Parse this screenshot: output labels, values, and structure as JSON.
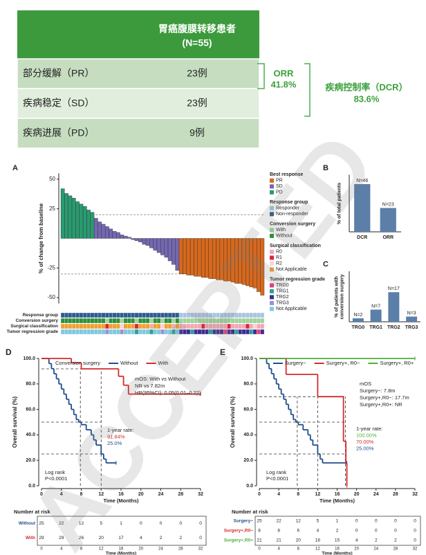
{
  "table": {
    "title": "胃癌腹膜转移患者",
    "subtitle": "(N=55)",
    "rows": [
      [
        "部分缓解（PR）",
        "23例"
      ],
      [
        "疾病稳定（SD）",
        "23例"
      ],
      [
        "疾病进展（PD）",
        "9例"
      ]
    ]
  },
  "summary": [
    {
      "label": "ORR",
      "value": "41.8%"
    },
    {
      "label": "疾病控制率（DCR）",
      "value": "83.6%"
    }
  ],
  "watermark": "ACCEPTED",
  "chart_data": [
    {
      "panel": "A",
      "type": "waterfall",
      "ylabel": "% of change from baseline",
      "ylim": [
        -55,
        55
      ],
      "yticks": [
        -50,
        -25,
        25,
        50
      ],
      "reference_lines": [
        20,
        -30
      ],
      "legend_title": "Best response",
      "series": [
        {
          "name": "PD",
          "color": "#2b9a70",
          "values": [
            42,
            38,
            36,
            34,
            31,
            29,
            27,
            24,
            22
          ]
        },
        {
          "name": "SD",
          "color": "#7468b0",
          "values": [
            17,
            14,
            12,
            10,
            8,
            6,
            5,
            3,
            2,
            1,
            -1,
            -2,
            -3,
            -5,
            -6,
            -8,
            -10,
            -12,
            -14,
            -16,
            -19,
            -22,
            -27
          ]
        },
        {
          "name": "PR",
          "color": "#d6691e",
          "values": [
            -30,
            -30,
            -31,
            -31,
            -32,
            -32,
            -33,
            -33,
            -34,
            -34,
            -35,
            -35,
            -36,
            -36,
            -37,
            -38,
            -38,
            -39,
            -40,
            -41,
            -42,
            -45,
            -48
          ]
        }
      ],
      "tracks": [
        {
          "name": "Response group",
          "levels": [
            {
              "name": "Responder",
              "color": "#a8c4df"
            },
            {
              "name": "Non-responder",
              "color": "#2d5d8c"
            }
          ],
          "values": [
            "Non-responder",
            "Non-responder",
            "Non-responder",
            "Non-responder",
            "Non-responder",
            "Non-responder",
            "Non-responder",
            "Non-responder",
            "Non-responder",
            "Non-responder",
            "Non-responder",
            "Non-responder",
            "Non-responder",
            "Non-responder",
            "Non-responder",
            "Non-responder",
            "Non-responder",
            "Non-responder",
            "Non-responder",
            "Non-responder",
            "Non-responder",
            "Non-responder",
            "Non-responder",
            "Non-responder",
            "Non-responder",
            "Non-responder",
            "Non-responder",
            "Non-responder",
            "Non-responder",
            "Non-responder",
            "Non-responder",
            "Non-responder",
            "Responder",
            "Responder",
            "Responder",
            "Responder",
            "Responder",
            "Responder",
            "Responder",
            "Responder",
            "Responder",
            "Responder",
            "Responder",
            "Responder",
            "Responder",
            "Responder",
            "Responder",
            "Responder",
            "Responder",
            "Responder",
            "Responder",
            "Responder",
            "Responder",
            "Responder",
            "Responder"
          ]
        },
        {
          "name": "Conversion surgery",
          "levels": [
            {
              "name": "With",
              "color": "#9fd39a"
            },
            {
              "name": "Without",
              "color": "#2f8f3a"
            }
          ],
          "values": [
            "Without",
            "Without",
            "Without",
            "Without",
            "Without",
            "Without",
            "Without",
            "Without",
            "Without",
            "Without",
            "Without",
            "Without",
            "With",
            "Without",
            "Without",
            "Without",
            "With",
            "Without",
            "Without",
            "Without",
            "With",
            "Without",
            "Without",
            "Without",
            "With",
            "Without",
            "Without",
            "With",
            "Without",
            "Without",
            "With",
            "Without",
            "With",
            "With",
            "With",
            "With",
            "With",
            "With",
            "With",
            "With",
            "With",
            "With",
            "With",
            "With",
            "With",
            "With",
            "With",
            "With",
            "With",
            "With",
            "With",
            "With",
            "With",
            "With",
            "With"
          ]
        },
        {
          "name": "Surgical classification",
          "levels": [
            {
              "name": "R0",
              "color": "#f4a6b4"
            },
            {
              "name": "R1",
              "color": "#d7263d"
            },
            {
              "name": "R2",
              "color": "#f9d3da"
            },
            {
              "name": "Not Applicable",
              "color": "#f0a030"
            }
          ],
          "values": [
            "Not Applicable",
            "Not Applicable",
            "Not Applicable",
            "Not Applicable",
            "Not Applicable",
            "Not Applicable",
            "Not Applicable",
            "Not Applicable",
            "Not Applicable",
            "Not Applicable",
            "Not Applicable",
            "Not Applicable",
            "R1",
            "Not Applicable",
            "Not Applicable",
            "Not Applicable",
            "R2",
            "Not Applicable",
            "Not Applicable",
            "Not Applicable",
            "R1",
            "Not Applicable",
            "Not Applicable",
            "Not Applicable",
            "R0",
            "Not Applicable",
            "Not Applicable",
            "R2",
            "Not Applicable",
            "Not Applicable",
            "R0",
            "Not Applicable",
            "R0",
            "R0",
            "R0",
            "R0",
            "R0",
            "R0",
            "R1",
            "R0",
            "R0",
            "R0",
            "R0",
            "R0",
            "R0",
            "R1",
            "R0",
            "R0",
            "R0",
            "R0",
            "R1",
            "R0",
            "R2",
            "R0",
            "R0"
          ]
        },
        {
          "name": "Tumor regression grade",
          "levels": [
            {
              "name": "TRG0",
              "color": "#e0407a"
            },
            {
              "name": "TRG1",
              "color": "#2aa198"
            },
            {
              "name": "TRG2",
              "color": "#3b2f8f"
            },
            {
              "name": "TRG3",
              "color": "#9e8fd0"
            },
            {
              "name": "Not Applicable",
              "color": "#7ec8e3"
            }
          ],
          "values": [
            "Not Applicable",
            "Not Applicable",
            "Not Applicable",
            "Not Applicable",
            "Not Applicable",
            "Not Applicable",
            "Not Applicable",
            "Not Applicable",
            "Not Applicable",
            "Not Applicable",
            "Not Applicable",
            "Not Applicable",
            "TRG3",
            "Not Applicable",
            "Not Applicable",
            "Not Applicable",
            "TRG3",
            "Not Applicable",
            "Not Applicable",
            "Not Applicable",
            "TRG1",
            "Not Applicable",
            "Not Applicable",
            "Not Applicable",
            "TRG1",
            "Not Applicable",
            "Not Applicable",
            "TRG3",
            "Not Applicable",
            "Not Applicable",
            "TRG1",
            "Not Applicable",
            "TRG2",
            "TRG2",
            "TRG2",
            "TRG1",
            "TRG2",
            "TRG2",
            "TRG2",
            "TRG2",
            "TRG1",
            "TRG2",
            "TRG2",
            "TRG2",
            "TRG0",
            "TRG2",
            "TRG2",
            "TRG1",
            "TRG2",
            "TRG2",
            "TRG2",
            "TRG1",
            "TRG2",
            "TRG0",
            "TRG2"
          ]
        }
      ]
    },
    {
      "panel": "B",
      "type": "bar",
      "ylabel": "% of total patients",
      "ylim": [
        0,
        100
      ],
      "categories": [
        "DCR",
        "ORR"
      ],
      "values": [
        83.6,
        41.8
      ],
      "bar_labels": [
        "N=46",
        "N=23"
      ],
      "color": "#5b7fa8"
    },
    {
      "panel": "C",
      "type": "bar",
      "ylabel": "% of patients with conversion surgery",
      "ylim": [
        0,
        100
      ],
      "categories": [
        "TRG0",
        "TRG1",
        "TRG2",
        "TRG3"
      ],
      "values": [
        6.9,
        24.1,
        58.6,
        10.3
      ],
      "bar_labels": [
        "N=2",
        "N=7",
        "N=17",
        "N=3"
      ],
      "color": "#5b7fa8"
    },
    {
      "panel": "D",
      "type": "km",
      "legend_title": "Conversion surgery",
      "xlabel": "Time (Months)",
      "ylabel": "Overall survival (%)",
      "xlim": [
        0,
        32
      ],
      "xticks": [
        0,
        4,
        8,
        12,
        16,
        20,
        24,
        28,
        32
      ],
      "ylim": [
        0,
        100
      ],
      "yticks": [
        {
          "value": 0,
          "label": "0.0"
        },
        {
          "value": 20,
          "label": "20.0"
        },
        {
          "value": 40,
          "label": "40.0"
        },
        {
          "value": 60,
          "label": "60.0"
        },
        {
          "value": 80,
          "label": "80.0"
        },
        {
          "value": 100,
          "label": "100.0"
        }
      ],
      "series": [
        {
          "name": "Without",
          "color": "#1f4e8c",
          "rate": "25.0%",
          "x": [
            0,
            1.5,
            2,
            2.5,
            3,
            3.5,
            4,
            4.5,
            5,
            5.5,
            6,
            6.5,
            7,
            7.5,
            8,
            9,
            10,
            10.5,
            11,
            12,
            12.5,
            13,
            15
          ],
          "values": [
            100,
            96,
            92,
            88,
            84,
            80,
            76,
            72,
            68,
            64,
            60,
            56,
            52,
            50,
            48,
            44,
            40,
            36,
            32,
            25,
            21,
            18,
            18
          ]
        },
        {
          "name": "With",
          "color": "#d62a2a",
          "rate": "91.84%",
          "x": [
            0,
            6,
            8,
            15.5,
            16.5,
            17.5,
            32
          ],
          "values": [
            100,
            96.6,
            91.84,
            86,
            79,
            72,
            72
          ]
        }
      ],
      "guides_x": [
        7.82,
        12
      ],
      "guides_y": [
        50,
        91.84,
        25
      ],
      "mos": [
        "mOS: With vs Without",
        "NR vs 7.82m",
        "HR(95%CI): 0.05(0.01–0.22)"
      ],
      "rate_title": "1-year rate:",
      "log_rank": [
        "Log rank",
        "P<0.0001"
      ],
      "risk_title": "Number at risk",
      "risk": [
        {
          "name": "Without",
          "values": [
            25,
            22,
            12,
            5,
            1,
            0,
            0,
            0,
            0
          ]
        },
        {
          "name": "With",
          "values": [
            29,
            29,
            26,
            20,
            17,
            4,
            2,
            2,
            0
          ]
        }
      ]
    },
    {
      "panel": "E",
      "type": "km",
      "xlabel": "Time (Months)",
      "ylabel": "Overall survival (%)",
      "xlim": [
        0,
        32
      ],
      "xticks": [
        0,
        4,
        8,
        12,
        16,
        20,
        24,
        28,
        32
      ],
      "ylim": [
        0,
        100
      ],
      "yticks": [
        {
          "value": 0,
          "label": "0.0"
        },
        {
          "value": 20,
          "label": "20.0"
        },
        {
          "value": 40,
          "label": "40.0"
        },
        {
          "value": 60,
          "label": "60.0"
        },
        {
          "value": 80,
          "label": "80.0"
        },
        {
          "value": 100,
          "label": "100.0"
        }
      ],
      "series": [
        {
          "name": "Surgery−",
          "color": "#1f4e8c",
          "rate": "25.00%",
          "x": [
            0,
            1.5,
            2,
            2.5,
            3,
            3.5,
            4,
            4.5,
            5,
            5.5,
            6,
            6.5,
            7,
            7.5,
            8,
            9,
            10,
            10.5,
            11,
            12,
            12.5,
            13,
            18
          ],
          "values": [
            100,
            96,
            92,
            88,
            84,
            80,
            76,
            72,
            68,
            64,
            60,
            56,
            52,
            50,
            48,
            44,
            40,
            36,
            32,
            25,
            21,
            18,
            18
          ]
        },
        {
          "name": "Surgery+, R0−",
          "color": "#d62a2a",
          "rate": "70.00%",
          "x": [
            0,
            5.5,
            12,
            17.3,
            17.8,
            18
          ],
          "values": [
            100,
            87.5,
            70,
            35,
            17.5,
            0
          ]
        },
        {
          "name": "Surgery+, R0+",
          "color": "#4caf3a",
          "rate": "100.00%",
          "x": [
            0,
            32
          ],
          "values": [
            100,
            100
          ]
        }
      ],
      "guides_x": [
        7.8,
        12,
        17.7
      ],
      "guides_y": [
        50,
        70,
        25
      ],
      "mos": [
        "mOS",
        "Surgery−: 7.8m",
        "Surgery+,R0−: 17.7m",
        "Surgery+,R0+: NR"
      ],
      "rate_title": "1-year rate:",
      "log_rank": [
        "Log rank",
        "P<0.0001"
      ],
      "risk_title": "Number at risk",
      "risk": [
        {
          "name": "Surgery−",
          "values": [
            25,
            22,
            12,
            5,
            1,
            0,
            0,
            0,
            0
          ]
        },
        {
          "name": "Surgery+,R0−",
          "values": [
            8,
            8,
            6,
            4,
            2,
            0,
            0,
            0,
            0
          ]
        },
        {
          "name": "Surgery+,R0+",
          "values": [
            21,
            21,
            20,
            16,
            15,
            4,
            2,
            2,
            0
          ]
        }
      ]
    }
  ]
}
